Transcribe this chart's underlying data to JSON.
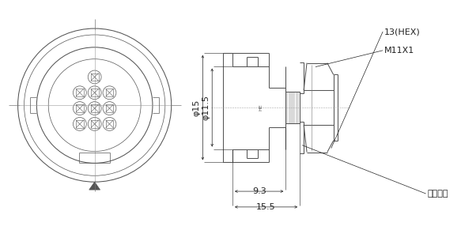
{
  "bg_color": "#ffffff",
  "line_color": "#555555",
  "dim_color": "#444444",
  "text_color": "#222222",
  "lw_main": 0.75,
  "lw_thin": 0.5,
  "lw_dim": 0.5,
  "annotations": {
    "dim_155": "15.5",
    "dim_93": "9.3",
    "dim_phi15": "φ15",
    "dim_phi115": "φ11.5",
    "label_packing": "パッキン",
    "label_m11x1": "M11X1",
    "label_hex": "13(HEX)"
  },
  "figsize": [
    5.83,
    2.91
  ],
  "dpi": 100
}
